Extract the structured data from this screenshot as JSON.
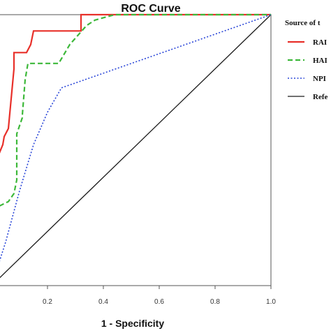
{
  "chart_data": {
    "type": "line",
    "title": "ROC Curve",
    "xlabel": "1 - Specificity",
    "ylabel": "",
    "xlim": [
      0,
      1
    ],
    "ylim": [
      0,
      1
    ],
    "x_ticks": [
      "0.2",
      "0.4",
      "0.6",
      "0.8",
      "1.0"
    ],
    "grid": false,
    "legend_title": "Source of t",
    "legend_position": "right",
    "series": [
      {
        "name": "RAI",
        "color": "#e8302a",
        "style": "solid",
        "points": [
          [
            0.0,
            0.0
          ],
          [
            0.0,
            0.24
          ],
          [
            0.0,
            0.41
          ],
          [
            0.02,
            0.47
          ],
          [
            0.04,
            0.52
          ],
          [
            0.045,
            0.55
          ],
          [
            0.06,
            0.58
          ],
          [
            0.08,
            0.8
          ],
          [
            0.08,
            0.86
          ],
          [
            0.125,
            0.86
          ],
          [
            0.14,
            0.89
          ],
          [
            0.15,
            0.94
          ],
          [
            0.32,
            0.94
          ],
          [
            0.32,
            1.0
          ],
          [
            1.0,
            1.0
          ]
        ]
      },
      {
        "name": "HAI",
        "color": "#3db83a",
        "style": "dashed",
        "points": [
          [
            0.0,
            0.0
          ],
          [
            0.0,
            0.28
          ],
          [
            0.06,
            0.31
          ],
          [
            0.08,
            0.34
          ],
          [
            0.09,
            0.39
          ],
          [
            0.09,
            0.56
          ],
          [
            0.11,
            0.62
          ],
          [
            0.11,
            0.63
          ],
          [
            0.12,
            0.76
          ],
          [
            0.13,
            0.82
          ],
          [
            0.24,
            0.82
          ],
          [
            0.28,
            0.89
          ],
          [
            0.34,
            0.96
          ],
          [
            0.37,
            0.98
          ],
          [
            0.44,
            1.0
          ],
          [
            1.0,
            1.0
          ]
        ]
      },
      {
        "name": "NPI",
        "color": "#2a46d8",
        "style": "dotted",
        "points": [
          [
            0.0,
            0.0
          ],
          [
            0.05,
            0.16
          ],
          [
            0.1,
            0.35
          ],
          [
            0.15,
            0.52
          ],
          [
            0.2,
            0.64
          ],
          [
            0.25,
            0.73
          ],
          [
            1.0,
            1.0
          ]
        ]
      },
      {
        "name": "Refe",
        "color": "#1a1a1a",
        "style": "solid",
        "points": [
          [
            0.0,
            0.0
          ],
          [
            1.0,
            1.0
          ]
        ]
      }
    ]
  }
}
